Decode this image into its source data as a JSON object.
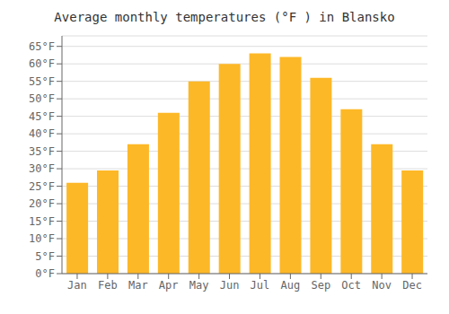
{
  "chart_data": {
    "type": "bar",
    "title": "Average monthly temperatures (°F ) in Blansko",
    "categories": [
      "Jan",
      "Feb",
      "Mar",
      "Apr",
      "May",
      "Jun",
      "Jul",
      "Aug",
      "Sep",
      "Oct",
      "Nov",
      "Dec"
    ],
    "values": [
      26,
      29.5,
      37,
      46,
      55,
      60,
      63,
      62,
      56,
      47,
      37,
      29.5
    ],
    "color": "#FDB827",
    "ylim": [
      0,
      68
    ],
    "yticks": [
      {
        "value": 0,
        "label": "0°F"
      },
      {
        "value": 5,
        "label": "5°F"
      },
      {
        "value": 10,
        "label": "10°F"
      },
      {
        "value": 15,
        "label": "15°F"
      },
      {
        "value": 20,
        "label": "20°F"
      },
      {
        "value": 25,
        "label": "25°F"
      },
      {
        "value": 30,
        "label": "30°F"
      },
      {
        "value": 35,
        "label": "35°F"
      },
      {
        "value": 40,
        "label": "40°F"
      },
      {
        "value": 45,
        "label": "45°F"
      },
      {
        "value": 50,
        "label": "50°F"
      },
      {
        "value": 55,
        "label": "55°F"
      },
      {
        "value": 60,
        "label": "60°F"
      },
      {
        "value": 65,
        "label": "65°F"
      }
    ],
    "grid": true
  }
}
